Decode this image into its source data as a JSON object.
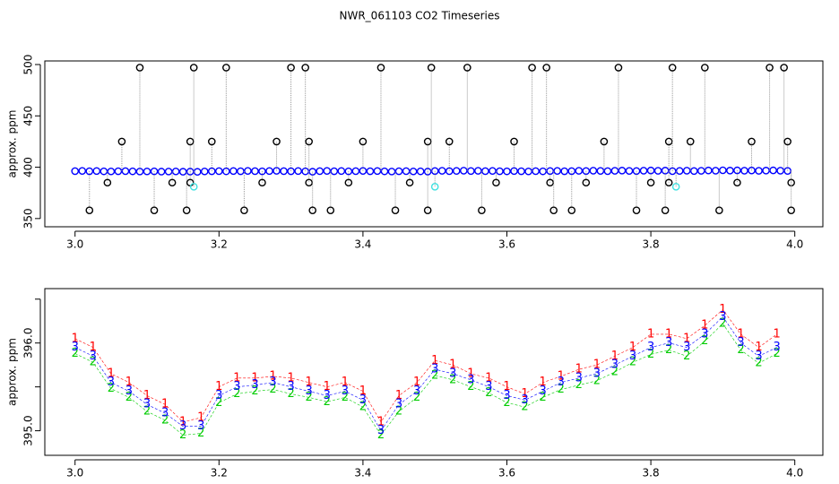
{
  "chart_data": [
    {
      "type": "scatter",
      "title": "NWR_061103  CO2 Timeseries",
      "ylabel": "approx. ppm",
      "xlim": [
        2.958,
        4.039
      ],
      "ylim": [
        342,
        503.5
      ],
      "xticks": [
        {
          "value": 3,
          "label": "3.0"
        },
        3.2,
        3.4,
        3.6,
        3.8,
        {
          "value": 4,
          "label": "4.0"
        }
      ],
      "yticks": [
        350,
        400,
        450,
        500
      ],
      "series": [
        {
          "color": "#0000ff",
          "connector": "#999999",
          "x": [
            3,
            3.01,
            3.02,
            3.03,
            3.04,
            3.05,
            3.06,
            3.07,
            3.08,
            3.09,
            3.1,
            3.11,
            3.12,
            3.13,
            3.14,
            3.15,
            3.16,
            3.17,
            3.18,
            3.19,
            3.2,
            3.21,
            3.22,
            3.23,
            3.24,
            3.25,
            3.26,
            3.27,
            3.28,
            3.29,
            3.3,
            3.31,
            3.32,
            3.33,
            3.34,
            3.35,
            3.36,
            3.37,
            3.38,
            3.39,
            3.4,
            3.41,
            3.42,
            3.43,
            3.44,
            3.45,
            3.46,
            3.47,
            3.48,
            3.49,
            3.5,
            3.51,
            3.52,
            3.53,
            3.54,
            3.55,
            3.56,
            3.57,
            3.58,
            3.59,
            3.6,
            3.61,
            3.62,
            3.63,
            3.64,
            3.65,
            3.66,
            3.67,
            3.68,
            3.69,
            3.7,
            3.71,
            3.72,
            3.73,
            3.74,
            3.75,
            3.76,
            3.77,
            3.78,
            3.79,
            3.8,
            3.81,
            3.82,
            3.83,
            3.84,
            3.85,
            3.86,
            3.87,
            3.88,
            3.89,
            3.9,
            3.91,
            3.92,
            3.93,
            3.94,
            3.95,
            3.96,
            3.97,
            3.98,
            3.99
          ],
          "values": [
            396.2,
            396.4,
            396.1,
            396.3,
            396.0,
            395.9,
            396.1,
            396.2,
            396.0,
            395.8,
            395.9,
            396.0,
            395.7,
            395.8,
            395.9,
            395.6,
            395.7,
            395.5,
            395.9,
            396.1,
            396.2,
            396.0,
            396.3,
            396.1,
            396.4,
            396.2,
            396.0,
            396.3,
            396.5,
            396.2,
            396.1,
            396.3,
            396.0,
            395.6,
            396.2,
            396.4,
            396.1,
            396.3,
            396.0,
            396.2,
            396.4,
            396.1,
            396.3,
            396.0,
            395.8,
            396.1,
            396.2,
            395.9,
            396.0,
            395.7,
            396.3,
            396.5,
            396.2,
            396.4,
            396.6,
            396.3,
            396.5,
            396.2,
            396.4,
            396.1,
            396.0,
            396.3,
            396.1,
            395.9,
            396.2,
            396.0,
            396.3,
            396.4,
            396.1,
            396.2,
            396.5,
            396.3,
            396.6,
            396.4,
            396.2,
            396.5,
            396.7,
            396.4,
            396.3,
            396.6,
            396.8,
            396.5,
            396.7,
            396.2,
            396.4,
            396.6,
            396.3,
            396.5,
            396.8,
            396.6,
            397.0,
            396.7,
            396.9,
            396.6,
            396.8,
            396.5,
            396.7,
            396.9,
            396.6,
            396.4
          ]
        },
        {
          "color": "#000000",
          "x": [
            3.02,
            3.045,
            3.065,
            3.09,
            3.11,
            3.135,
            3.155,
            3.16,
            3.16,
            3.165,
            3.19,
            3.21,
            3.235,
            3.26,
            3.28,
            3.3,
            3.32,
            3.325,
            3.325,
            3.33,
            3.355,
            3.38,
            3.4,
            3.425,
            3.445,
            3.465,
            3.49,
            3.49,
            3.495,
            3.52,
            3.545,
            3.565,
            3.585,
            3.61,
            3.635,
            3.655,
            3.66,
            3.665,
            3.69,
            3.71,
            3.735,
            3.755,
            3.78,
            3.8,
            3.82,
            3.825,
            3.825,
            3.83,
            3.855,
            3.875,
            3.895,
            3.92,
            3.94,
            3.965,
            3.985,
            3.99,
            3.995,
            3.995
          ],
          "values": [
            358,
            385,
            425,
            497,
            358,
            385,
            358,
            385,
            425,
            497,
            425,
            497,
            358,
            385,
            425,
            497,
            497,
            425,
            385,
            358,
            358,
            385,
            425,
            497,
            358,
            385,
            358,
            425,
            497,
            425,
            497,
            358,
            385,
            425,
            497,
            497,
            385,
            358,
            358,
            385,
            425,
            497,
            358,
            385,
            358,
            385,
            425,
            497,
            425,
            497,
            358,
            385,
            425,
            497,
            497,
            425,
            385,
            358
          ]
        },
        {
          "color": "#40e0e0",
          "x": [
            3.165,
            3.5,
            3.835
          ],
          "values": [
            381,
            381,
            381
          ]
        }
      ]
    },
    {
      "type": "scatter",
      "ylabel": "approx. ppm",
      "xlim": [
        2.958,
        4.039
      ],
      "ylim": [
        394.72,
        396.62
      ],
      "xticks": [
        {
          "value": 3,
          "label": "3.0"
        },
        3.2,
        3.4,
        3.6,
        3.8,
        {
          "value": 4,
          "label": "4.0"
        }
      ],
      "yticks": [
        {
          "value": 395,
          "label": "395.0"
        },
        {
          "value": 396,
          "label": "396.0"
        }
      ],
      "yminor": [
        395.5,
        396.5
      ],
      "x": [
        3,
        3.025,
        3.05,
        3.075,
        3.1,
        3.125,
        3.15,
        3.175,
        3.2,
        3.225,
        3.25,
        3.275,
        3.3,
        3.325,
        3.35,
        3.375,
        3.4,
        3.425,
        3.45,
        3.475,
        3.5,
        3.525,
        3.55,
        3.575,
        3.6,
        3.625,
        3.65,
        3.675,
        3.7,
        3.725,
        3.75,
        3.775,
        3.8,
        3.825,
        3.85,
        3.875,
        3.9,
        3.925,
        3.95,
        3.975
      ],
      "series": [
        {
          "marker": "1",
          "color": "#ff0000",
          "values": [
            396.05,
            395.95,
            395.65,
            395.55,
            395.4,
            395.3,
            395.1,
            395.15,
            395.5,
            395.6,
            395.6,
            395.62,
            395.6,
            395.55,
            395.5,
            395.55,
            395.45,
            395.1,
            395.4,
            395.55,
            395.8,
            395.75,
            395.65,
            395.6,
            395.5,
            395.42,
            395.55,
            395.62,
            395.7,
            395.75,
            395.85,
            395.95,
            396.1,
            396.1,
            396.05,
            396.2,
            396.38,
            396.1,
            395.95,
            396.1
          ]
        },
        {
          "marker": "2",
          "color": "#00cc00",
          "values": [
            395.88,
            395.78,
            395.48,
            395.38,
            395.22,
            395.12,
            394.95,
            394.97,
            395.32,
            395.42,
            395.45,
            395.47,
            395.42,
            395.38,
            395.33,
            395.38,
            395.27,
            394.95,
            395.22,
            395.38,
            395.63,
            395.58,
            395.5,
            395.43,
            395.32,
            395.27,
            395.38,
            395.47,
            395.52,
            395.57,
            395.67,
            395.78,
            395.87,
            395.92,
            395.85,
            396.02,
            396.22,
            395.92,
            395.77,
            395.88
          ]
        },
        {
          "marker": "3",
          "color": "#0000ff",
          "values": [
            395.95,
            395.85,
            395.55,
            395.45,
            395.3,
            395.2,
            395.05,
            395.05,
            395.4,
            395.5,
            395.52,
            395.55,
            395.5,
            395.45,
            395.4,
            395.45,
            395.35,
            395.0,
            395.3,
            395.45,
            395.7,
            395.65,
            395.58,
            395.5,
            395.4,
            395.35,
            395.45,
            395.55,
            395.6,
            395.65,
            395.75,
            395.85,
            395.95,
            396.0,
            395.95,
            396.1,
            396.3,
            396.0,
            395.85,
            395.95
          ]
        }
      ]
    }
  ]
}
